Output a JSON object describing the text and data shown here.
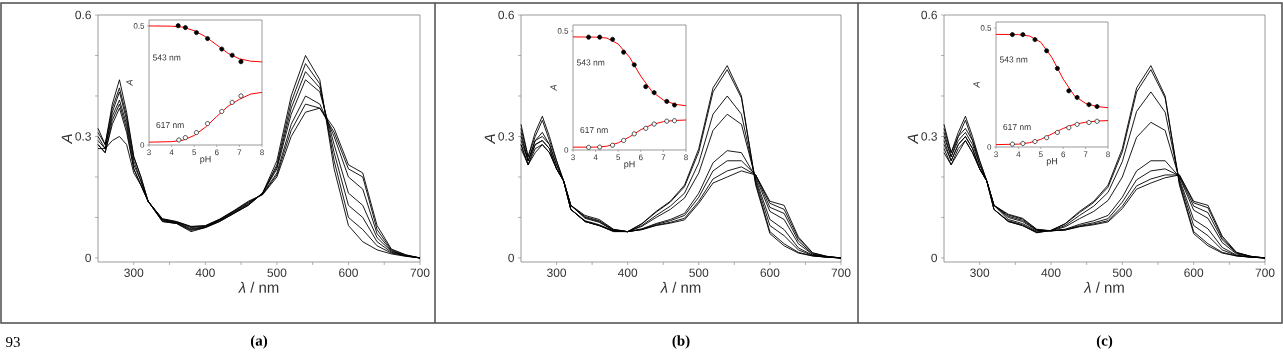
{
  "chart_data": [
    {
      "type": "line",
      "x": [
        250,
        260,
        270,
        280,
        290,
        300,
        310,
        320,
        340,
        360,
        380,
        400,
        420,
        440,
        460,
        480,
        500,
        520,
        540,
        560,
        580,
        600,
        620,
        640,
        660,
        680,
        700
      ],
      "xlim": [
        250,
        700
      ],
      "ylim": [
        -0.01,
        0.6
      ],
      "xticks": [
        300,
        {
          "value": 350,
          "label": null
        },
        400,
        {
          "value": 450,
          "label": null
        },
        500,
        {
          "value": 550,
          "label": null
        },
        600,
        {
          "value": 650,
          "label": null
        },
        700
      ],
      "yticks": [
        0,
        {
          "value": 0.1,
          "label": null
        },
        {
          "value": 0.2,
          "label": null
        },
        0.3,
        {
          "value": 0.4,
          "label": null
        },
        {
          "value": 0.5,
          "label": null
        },
        0.6
      ],
      "xlabel": "*λ* / nm",
      "ylabel": "A",
      "annotations": [
        "(a)",
        "93"
      ],
      "series": [
        {
          "color": "#000000",
          "values": [
            0.32,
            0.28,
            0.38,
            0.44,
            0.36,
            0.25,
            0.2,
            0.14,
            0.09,
            0.085,
            0.065,
            0.075,
            0.09,
            0.11,
            0.13,
            0.16,
            0.24,
            0.4,
            0.5,
            0.44,
            0.22,
            0.08,
            0.04,
            0.02,
            0.01,
            0.004,
            0.0
          ]
        },
        {
          "color": "#000000",
          "values": [
            0.31,
            0.28,
            0.37,
            0.42,
            0.35,
            0.25,
            0.2,
            0.14,
            0.09,
            0.085,
            0.068,
            0.075,
            0.09,
            0.11,
            0.13,
            0.16,
            0.23,
            0.385,
            0.48,
            0.43,
            0.24,
            0.1,
            0.07,
            0.03,
            0.012,
            0.005,
            0.0
          ]
        },
        {
          "color": "#000000",
          "values": [
            0.3,
            0.27,
            0.36,
            0.41,
            0.34,
            0.24,
            0.19,
            0.14,
            0.092,
            0.086,
            0.07,
            0.076,
            0.092,
            0.112,
            0.132,
            0.16,
            0.225,
            0.37,
            0.46,
            0.42,
            0.26,
            0.13,
            0.1,
            0.04,
            0.014,
            0.005,
            0.0
          ]
        },
        {
          "color": "#000000",
          "values": [
            0.29,
            0.27,
            0.35,
            0.39,
            0.33,
            0.23,
            0.19,
            0.14,
            0.094,
            0.087,
            0.072,
            0.077,
            0.093,
            0.113,
            0.134,
            0.16,
            0.22,
            0.355,
            0.44,
            0.41,
            0.28,
            0.16,
            0.13,
            0.05,
            0.016,
            0.006,
            0.0
          ]
        },
        {
          "color": "#000000",
          "values": [
            0.28,
            0.26,
            0.34,
            0.38,
            0.32,
            0.22,
            0.18,
            0.14,
            0.095,
            0.088,
            0.075,
            0.078,
            0.094,
            0.115,
            0.136,
            0.158,
            0.21,
            0.33,
            0.4,
            0.38,
            0.3,
            0.2,
            0.17,
            0.06,
            0.018,
            0.006,
            0.0
          ]
        },
        {
          "color": "#000000",
          "values": [
            0.28,
            0.26,
            0.33,
            0.37,
            0.31,
            0.22,
            0.18,
            0.14,
            0.096,
            0.089,
            0.077,
            0.079,
            0.095,
            0.116,
            0.138,
            0.157,
            0.205,
            0.315,
            0.38,
            0.37,
            0.31,
            0.22,
            0.2,
            0.07,
            0.02,
            0.007,
            0.0
          ]
        },
        {
          "color": "#000000",
          "values": [
            0.27,
            0.27,
            0.29,
            0.3,
            0.28,
            0.21,
            0.18,
            0.14,
            0.097,
            0.09,
            0.078,
            0.08,
            0.096,
            0.117,
            0.14,
            0.156,
            0.2,
            0.3,
            0.36,
            0.37,
            0.32,
            0.23,
            0.21,
            0.08,
            0.022,
            0.008,
            0.0
          ]
        }
      ]
    },
    {
      "type": "scatter",
      "marker": "circle",
      "xlim": [
        3,
        8
      ],
      "ylim": [
        0,
        0.525
      ],
      "xticks": [
        3,
        4,
        5,
        6,
        7,
        8
      ],
      "yticks": [
        0,
        0.5
      ],
      "xlabel": "pH",
      "ylabel": "A",
      "annotations": [
        "543 nm",
        "617 nm"
      ],
      "series": [
        {
          "type": "line",
          "marker": "none",
          "color": "#ff0000",
          "x": [
            3,
            4,
            4.5,
            5,
            5.5,
            6,
            6.5,
            7,
            7.5,
            8
          ],
          "values": [
            0.5,
            0.499,
            0.495,
            0.48,
            0.455,
            0.42,
            0.385,
            0.362,
            0.352,
            0.349
          ]
        },
        {
          "color": "#000000",
          "x": [
            4.29,
            4.61,
            5.1,
            5.59,
            6.22,
            6.68,
            7.07
          ],
          "values": [
            0.501,
            0.493,
            0.472,
            0.447,
            0.403,
            0.377,
            0.35
          ]
        },
        {
          "type": "line",
          "marker": "none",
          "color": "#ff0000",
          "x": [
            3,
            4,
            4.5,
            5,
            5.5,
            6,
            6.5,
            7,
            7.5,
            8
          ],
          "values": [
            0.012,
            0.014,
            0.02,
            0.04,
            0.075,
            0.12,
            0.163,
            0.192,
            0.214,
            0.221
          ]
        },
        {
          "color": "#000000",
          "x": [
            4.32,
            4.61,
            5.1,
            5.59,
            6.22,
            6.68,
            7.07
          ],
          "values": [
            0.021,
            0.031,
            0.052,
            0.09,
            0.141,
            0.179,
            0.206
          ]
        }
      ]
    },
    {
      "type": "line",
      "x": [
        250,
        260,
        270,
        280,
        290,
        300,
        310,
        320,
        340,
        360,
        380,
        400,
        420,
        440,
        460,
        480,
        500,
        520,
        540,
        560,
        580,
        600,
        620,
        640,
        660,
        680,
        700
      ],
      "xlim": [
        250,
        700
      ],
      "ylim": [
        -0.01,
        0.6
      ],
      "xticks": [
        300,
        {
          "value": 350,
          "label": null
        },
        400,
        {
          "value": 450,
          "label": null
        },
        500,
        {
          "value": 550,
          "label": null
        },
        600,
        {
          "value": 650,
          "label": null
        },
        700
      ],
      "yticks": [
        0,
        {
          "value": 0.1,
          "label": null
        },
        {
          "value": 0.2,
          "label": null
        },
        0.3,
        {
          "value": 0.4,
          "label": null
        },
        {
          "value": 0.5,
          "label": null
        },
        0.6
      ],
      "xlabel": "*λ* / nm",
      "ylabel": "A",
      "annotations": [
        "(b)"
      ],
      "series": [
        {
          "color": "#000000",
          "values": [
            0.33,
            0.25,
            0.31,
            0.35,
            0.3,
            0.24,
            0.19,
            0.12,
            0.09,
            0.08,
            0.065,
            0.065,
            0.085,
            0.115,
            0.14,
            0.18,
            0.27,
            0.42,
            0.475,
            0.4,
            0.18,
            0.06,
            0.03,
            0.012,
            0.005,
            0.002,
            0.0
          ]
        },
        {
          "color": "#000000",
          "values": [
            0.32,
            0.25,
            0.3,
            0.34,
            0.29,
            0.24,
            0.19,
            0.12,
            0.09,
            0.08,
            0.066,
            0.065,
            0.084,
            0.113,
            0.138,
            0.176,
            0.262,
            0.41,
            0.465,
            0.395,
            0.185,
            0.065,
            0.035,
            0.014,
            0.005,
            0.002,
            0.0
          ]
        },
        {
          "color": "#000000",
          "values": [
            0.31,
            0.24,
            0.29,
            0.31,
            0.28,
            0.23,
            0.19,
            0.12,
            0.09,
            0.08,
            0.067,
            0.065,
            0.08,
            0.105,
            0.128,
            0.16,
            0.235,
            0.355,
            0.4,
            0.355,
            0.19,
            0.08,
            0.055,
            0.02,
            0.006,
            0.002,
            0.0
          ]
        },
        {
          "color": "#000000",
          "values": [
            0.3,
            0.24,
            0.29,
            0.3,
            0.28,
            0.23,
            0.19,
            0.12,
            0.092,
            0.082,
            0.067,
            0.065,
            0.078,
            0.1,
            0.12,
            0.148,
            0.21,
            0.315,
            0.355,
            0.33,
            0.195,
            0.095,
            0.07,
            0.025,
            0.007,
            0.002,
            0.0
          ]
        },
        {
          "color": "#000000",
          "values": [
            0.29,
            0.24,
            0.28,
            0.29,
            0.27,
            0.22,
            0.19,
            0.13,
            0.098,
            0.088,
            0.068,
            0.065,
            0.072,
            0.085,
            0.095,
            0.11,
            0.16,
            0.235,
            0.265,
            0.26,
            0.2,
            0.115,
            0.095,
            0.035,
            0.009,
            0.003,
            0.0
          ]
        },
        {
          "color": "#000000",
          "values": [
            0.28,
            0.23,
            0.28,
            0.29,
            0.27,
            0.22,
            0.19,
            0.13,
            0.1,
            0.09,
            0.069,
            0.065,
            0.071,
            0.083,
            0.092,
            0.105,
            0.15,
            0.215,
            0.24,
            0.24,
            0.205,
            0.125,
            0.11,
            0.042,
            0.01,
            0.003,
            0.0
          ]
        },
        {
          "color": "#000000",
          "values": [
            0.28,
            0.23,
            0.27,
            0.28,
            0.26,
            0.22,
            0.19,
            0.13,
            0.102,
            0.092,
            0.07,
            0.065,
            0.07,
            0.081,
            0.088,
            0.098,
            0.14,
            0.195,
            0.215,
            0.225,
            0.205,
            0.135,
            0.12,
            0.048,
            0.012,
            0.004,
            0.0
          ]
        },
        {
          "color": "#000000",
          "values": [
            0.27,
            0.23,
            0.26,
            0.28,
            0.26,
            0.22,
            0.19,
            0.13,
            0.105,
            0.095,
            0.071,
            0.065,
            0.07,
            0.08,
            0.086,
            0.094,
            0.135,
            0.185,
            0.2,
            0.215,
            0.205,
            0.14,
            0.13,
            0.052,
            0.013,
            0.004,
            0.0
          ]
        }
      ]
    },
    {
      "type": "scatter",
      "marker": "circle",
      "xlim": [
        3,
        8
      ],
      "ylim": [
        0,
        0.525
      ],
      "xticks": [
        3,
        4,
        5,
        6,
        7,
        8
      ],
      "yticks": [
        0,
        0.5
      ],
      "xlabel": "pH",
      "ylabel": "A",
      "annotations": [
        "543 nm",
        "617 nm"
      ],
      "series": [
        {
          "type": "line",
          "marker": "none",
          "color": "#ff0000",
          "x": [
            3,
            4,
            4.5,
            5,
            5.5,
            6,
            6.5,
            7,
            7.5,
            8
          ],
          "values": [
            0.475,
            0.474,
            0.47,
            0.445,
            0.39,
            0.31,
            0.245,
            0.21,
            0.192,
            0.186
          ]
        },
        {
          "color": "#000000",
          "x": [
            3.69,
            4.18,
            4.75,
            5.24,
            5.71,
            6.22,
            6.59,
            7.15,
            7.49
          ],
          "values": [
            0.474,
            0.474,
            0.465,
            0.411,
            0.358,
            0.266,
            0.241,
            0.204,
            0.189
          ]
        },
        {
          "type": "line",
          "marker": "none",
          "color": "#ff0000",
          "x": [
            3,
            4,
            4.5,
            5,
            5.5,
            6,
            6.5,
            7,
            7.5,
            8
          ],
          "values": [
            0.012,
            0.012,
            0.016,
            0.03,
            0.055,
            0.085,
            0.107,
            0.119,
            0.124,
            0.126
          ]
        },
        {
          "color": "#000000",
          "x": [
            3.69,
            4.18,
            4.75,
            5.24,
            5.71,
            6.22,
            6.59,
            7.15,
            7.49
          ],
          "values": [
            0.011,
            0.012,
            0.02,
            0.04,
            0.068,
            0.091,
            0.109,
            0.121,
            0.123
          ]
        }
      ]
    },
    {
      "type": "line",
      "x": [
        250,
        260,
        270,
        280,
        290,
        300,
        310,
        320,
        340,
        360,
        380,
        400,
        420,
        440,
        460,
        480,
        500,
        520,
        540,
        560,
        580,
        600,
        620,
        640,
        660,
        680,
        700
      ],
      "xlim": [
        250,
        700
      ],
      "ylim": [
        -0.01,
        0.6
      ],
      "xticks": [
        300,
        {
          "value": 350,
          "label": null
        },
        400,
        {
          "value": 450,
          "label": null
        },
        500,
        {
          "value": 550,
          "label": null
        },
        600,
        {
          "value": 650,
          "label": null
        },
        700
      ],
      "yticks": [
        0,
        {
          "value": 0.1,
          "label": null
        },
        {
          "value": 0.2,
          "label": null
        },
        0.3,
        {
          "value": 0.4,
          "label": null
        },
        {
          "value": 0.5,
          "label": null
        },
        0.6
      ],
      "xlabel": "*λ* / nm",
      "ylabel": "A",
      "annotations": [
        "(c)"
      ],
      "series": [
        {
          "color": "#000000",
          "values": [
            0.33,
            0.26,
            0.31,
            0.35,
            0.3,
            0.24,
            0.19,
            0.12,
            0.09,
            0.08,
            0.062,
            0.068,
            0.085,
            0.115,
            0.14,
            0.18,
            0.27,
            0.42,
            0.475,
            0.4,
            0.18,
            0.06,
            0.03,
            0.012,
            0.005,
            0.002,
            0.0
          ]
        },
        {
          "color": "#000000",
          "values": [
            0.32,
            0.26,
            0.3,
            0.34,
            0.29,
            0.24,
            0.19,
            0.12,
            0.09,
            0.08,
            0.063,
            0.068,
            0.084,
            0.112,
            0.137,
            0.175,
            0.262,
            0.41,
            0.465,
            0.395,
            0.185,
            0.065,
            0.035,
            0.014,
            0.005,
            0.002,
            0.0
          ]
        },
        {
          "color": "#000000",
          "values": [
            0.31,
            0.25,
            0.3,
            0.32,
            0.29,
            0.23,
            0.19,
            0.12,
            0.092,
            0.082,
            0.064,
            0.068,
            0.08,
            0.105,
            0.128,
            0.162,
            0.238,
            0.362,
            0.41,
            0.36,
            0.19,
            0.08,
            0.055,
            0.02,
            0.006,
            0.002,
            0.0
          ]
        },
        {
          "color": "#000000",
          "values": [
            0.3,
            0.25,
            0.29,
            0.31,
            0.28,
            0.23,
            0.19,
            0.13,
            0.095,
            0.085,
            0.066,
            0.067,
            0.077,
            0.097,
            0.115,
            0.142,
            0.2,
            0.298,
            0.335,
            0.315,
            0.195,
            0.095,
            0.072,
            0.026,
            0.007,
            0.002,
            0.0
          ]
        },
        {
          "color": "#000000",
          "values": [
            0.29,
            0.24,
            0.28,
            0.3,
            0.27,
            0.22,
            0.19,
            0.13,
            0.1,
            0.09,
            0.068,
            0.067,
            0.071,
            0.083,
            0.092,
            0.105,
            0.15,
            0.215,
            0.24,
            0.24,
            0.2,
            0.118,
            0.098,
            0.038,
            0.01,
            0.003,
            0.0
          ]
        },
        {
          "color": "#000000",
          "values": [
            0.28,
            0.24,
            0.28,
            0.3,
            0.27,
            0.22,
            0.19,
            0.13,
            0.103,
            0.093,
            0.069,
            0.067,
            0.07,
            0.08,
            0.087,
            0.097,
            0.138,
            0.193,
            0.215,
            0.22,
            0.203,
            0.128,
            0.112,
            0.045,
            0.012,
            0.004,
            0.0
          ]
        },
        {
          "color": "#000000",
          "values": [
            0.27,
            0.23,
            0.27,
            0.29,
            0.26,
            0.22,
            0.19,
            0.13,
            0.106,
            0.096,
            0.07,
            0.067,
            0.069,
            0.078,
            0.084,
            0.092,
            0.128,
            0.178,
            0.195,
            0.205,
            0.205,
            0.136,
            0.124,
            0.05,
            0.013,
            0.004,
            0.0
          ]
        },
        {
          "color": "#000000",
          "values": [
            0.26,
            0.23,
            0.26,
            0.29,
            0.26,
            0.22,
            0.19,
            0.13,
            0.108,
            0.098,
            0.071,
            0.067,
            0.069,
            0.077,
            0.082,
            0.089,
            0.122,
            0.17,
            0.185,
            0.198,
            0.205,
            0.14,
            0.13,
            0.054,
            0.014,
            0.004,
            0.0
          ]
        }
      ]
    },
    {
      "type": "scatter",
      "marker": "circle",
      "xlim": [
        3,
        8
      ],
      "ylim": [
        0,
        0.525
      ],
      "xticks": [
        3,
        4,
        5,
        6,
        7,
        8
      ],
      "yticks": [
        0,
        0.5
      ],
      "xlabel": "pH",
      "ylabel": "A",
      "annotations": [
        "543 nm",
        "617 nm"
      ],
      "series": [
        {
          "type": "line",
          "marker": "none",
          "color": "#ff0000",
          "x": [
            3,
            4,
            4.5,
            5,
            5.5,
            6,
            6.5,
            7,
            7.5,
            8
          ],
          "values": [
            0.473,
            0.472,
            0.466,
            0.44,
            0.375,
            0.285,
            0.215,
            0.183,
            0.17,
            0.165
          ]
        },
        {
          "color": "#000000",
          "x": [
            3.73,
            4.2,
            4.74,
            5.26,
            5.74,
            6.25,
            6.62,
            7.15,
            7.51
          ],
          "values": [
            0.472,
            0.472,
            0.451,
            0.404,
            0.33,
            0.236,
            0.208,
            0.178,
            0.17
          ]
        },
        {
          "type": "line",
          "marker": "none",
          "color": "#ff0000",
          "x": [
            3,
            4,
            4.5,
            5,
            5.5,
            6,
            6.5,
            7,
            7.5,
            8
          ],
          "values": [
            0.01,
            0.012,
            0.018,
            0.032,
            0.055,
            0.078,
            0.095,
            0.104,
            0.109,
            0.111
          ]
        },
        {
          "color": "#000000",
          "x": [
            3.73,
            4.2,
            4.74,
            5.26,
            5.74,
            6.25,
            6.62,
            7.15,
            7.51
          ],
          "values": [
            0.012,
            0.015,
            0.023,
            0.039,
            0.061,
            0.081,
            0.095,
            0.103,
            0.108
          ]
        }
      ]
    }
  ]
}
